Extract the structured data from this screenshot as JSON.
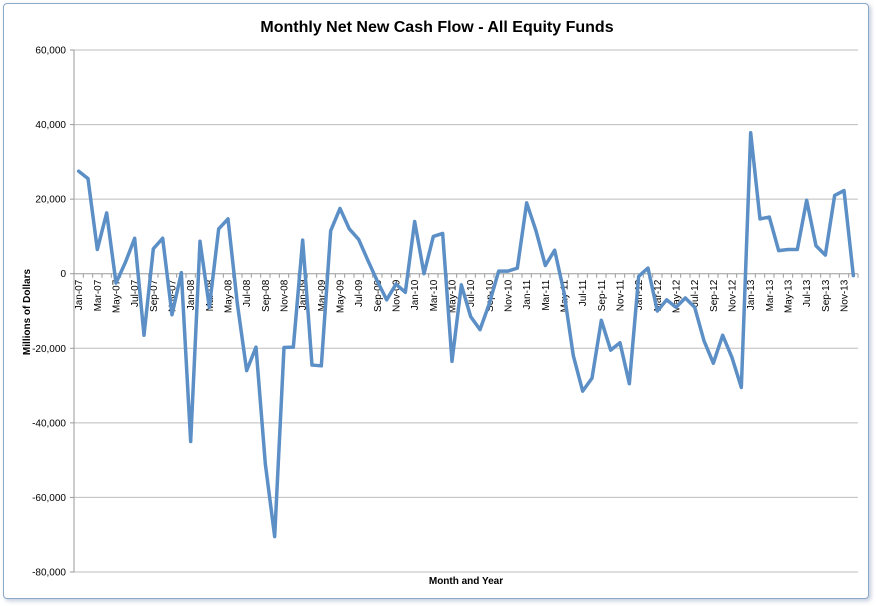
{
  "chart_data": {
    "type": "line",
    "title": "Monthly Net New Cash Flow - All Equity Funds",
    "xlabel": "Month and Year",
    "ylabel": "Millions of Dollars",
    "ylim": [
      -80000,
      60000
    ],
    "y_ticks": [
      "60,000",
      "40,000",
      "20,000",
      "0",
      "-20,000",
      "-40,000",
      "-60,000",
      "-80,000"
    ],
    "y_tick_values": [
      60000,
      40000,
      20000,
      0,
      -20000,
      -40000,
      -60000,
      -80000
    ],
    "grid": true,
    "legend": "none",
    "line_color": "#5b8fc6",
    "x_tick_labels": [
      "Jan-07",
      "Mar-07",
      "May-07",
      "Jul-07",
      "Sep-07",
      "Nov-07",
      "Jan-08",
      "Mar-08",
      "May-08",
      "Jul-08",
      "Sep-08",
      "Nov-08",
      "Jan-09",
      "Mar-09",
      "May-09",
      "Jul-09",
      "Sep-09",
      "Nov-09",
      "Jan-10",
      "Mar-10",
      "May-10",
      "Jul-10",
      "Sep-10",
      "Nov-10",
      "Jan-11",
      "Mar-11",
      "May-11",
      "Jul-11",
      "Sep-11",
      "Nov-11",
      "Jan-12",
      "Mar-12",
      "May-12",
      "Jul-12",
      "Sep-12",
      "Nov-12",
      "Jan-13",
      "Mar-13",
      "May-13",
      "Jul-13",
      "Sep-13",
      "Nov-13"
    ],
    "x": [
      "Jan-07",
      "Feb-07",
      "Mar-07",
      "Apr-07",
      "May-07",
      "Jun-07",
      "Jul-07",
      "Aug-07",
      "Sep-07",
      "Oct-07",
      "Nov-07",
      "Dec-07",
      "Jan-08",
      "Feb-08",
      "Mar-08",
      "Apr-08",
      "May-08",
      "Jun-08",
      "Jul-08",
      "Aug-08",
      "Sep-08",
      "Oct-08",
      "Nov-08",
      "Dec-08",
      "Jan-09",
      "Feb-09",
      "Mar-09",
      "Apr-09",
      "May-09",
      "Jun-09",
      "Jul-09",
      "Aug-09",
      "Sep-09",
      "Oct-09",
      "Nov-09",
      "Dec-09",
      "Jan-10",
      "Feb-10",
      "Mar-10",
      "Apr-10",
      "May-10",
      "Jun-10",
      "Jul-10",
      "Aug-10",
      "Sep-10",
      "Oct-10",
      "Nov-10",
      "Dec-10",
      "Jan-11",
      "Feb-11",
      "Mar-11",
      "Apr-11",
      "May-11",
      "Jun-11",
      "Jul-11",
      "Aug-11",
      "Sep-11",
      "Oct-11",
      "Nov-11",
      "Dec-11",
      "Jan-12",
      "Feb-12",
      "Mar-12",
      "Apr-12",
      "May-12",
      "Jun-12",
      "Jul-12",
      "Aug-12",
      "Sep-12",
      "Oct-12",
      "Nov-12",
      "Dec-12",
      "Jan-13",
      "Feb-13",
      "Mar-13",
      "Apr-13",
      "May-13",
      "Jun-13",
      "Jul-13",
      "Aug-13",
      "Sep-13",
      "Oct-13",
      "Nov-13",
      "Dec-13"
    ],
    "series": [
      {
        "values": [
          27500,
          25500,
          6500,
          16300,
          -2500,
          3000,
          9500,
          -16500,
          6700,
          9500,
          -11000,
          300,
          -45000,
          8700,
          -9000,
          12000,
          14700,
          -8000,
          -26000,
          -19700,
          -51000,
          -70500,
          -19800,
          -19700,
          9000,
          -24500,
          -24700,
          11500,
          17500,
          12000,
          9200,
          3500,
          -2000,
          -7000,
          -2800,
          -5000,
          14000,
          0,
          10000,
          10800,
          -23500,
          -3000,
          -11500,
          -15000,
          -8000,
          700,
          700,
          1500,
          19000,
          11500,
          2200,
          6300,
          -5000,
          -22000,
          -31500,
          -28000,
          -12500,
          -20500,
          -18500,
          -29500,
          -700,
          1500,
          -10000,
          -7000,
          -9000,
          -6500,
          -9000,
          -18000,
          -24000,
          -16500,
          -22500,
          -30500,
          37800,
          14700,
          15200,
          6200,
          6500,
          6500,
          19700,
          7500,
          5000,
          21000,
          22300,
          -500
        ]
      }
    ]
  }
}
